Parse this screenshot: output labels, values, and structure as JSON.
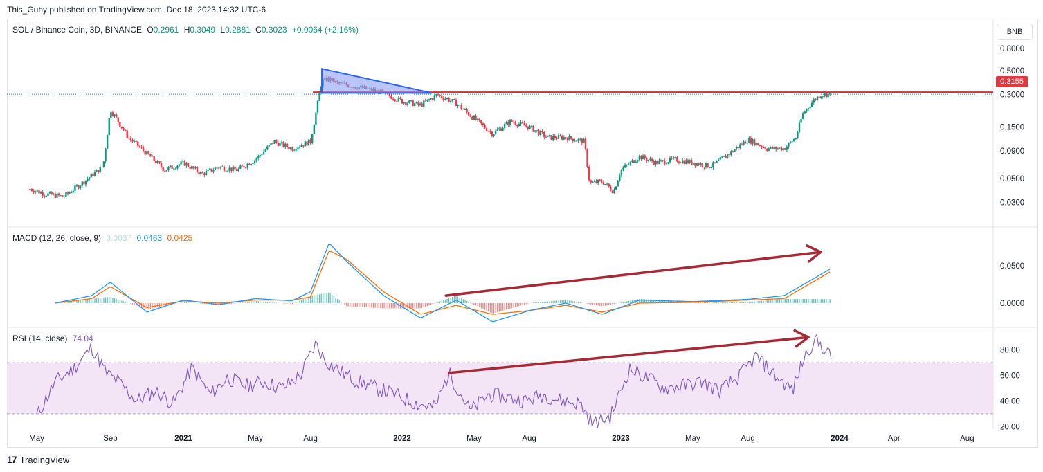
{
  "publisher_line": "This_Guhy published on TradingView.com, Dec 18, 2023 14:32 UTC-6",
  "footer": {
    "brand": "TradingView",
    "logo_icon": "tradingview-logo-icon"
  },
  "currency_button": "BNB",
  "last_price_badge": "0.3155",
  "colors": {
    "up": "#089981",
    "down": "#f23645",
    "macd": "#2196f3",
    "signal": "#ff6d00",
    "rsi": "#7e57c2",
    "rsi_band": "#f3e5f5",
    "resistance": "#d32f3a",
    "triangle_fill": "#8c9ff5",
    "triangle_stroke": "#2962ff",
    "arrow": "#a52a35"
  },
  "legend": {
    "main": {
      "symbol": "SOL / Binance Coin, 3D, BINANCE",
      "o_label": "O",
      "o": "0.2961",
      "h_label": "H",
      "h": "0.3049",
      "l_label": "L",
      "l": "0.2881",
      "c_label": "C",
      "c": "0.3023",
      "change": "+0.0064 (+2.16%)"
    },
    "macd": {
      "title": "MACD (12, 26, close, 9)",
      "hist": "0.0037",
      "macd": "0.0463",
      "signal": "0.0425"
    },
    "rsi": {
      "title": "RSI (14, close)",
      "value": "74.04"
    }
  },
  "chart_data": [
    {
      "type": "candlestick",
      "scale": "log",
      "yticks": [
        "0.8000",
        "0.5000",
        "0.3000",
        "0.1500",
        "0.0900",
        "0.0500",
        "0.0300"
      ],
      "ytick_values": [
        0.8,
        0.5,
        0.3,
        0.15,
        0.09,
        0.05,
        0.03
      ],
      "ylim": [
        0.02,
        1.0
      ],
      "x": [
        "2020-04-20",
        "2020-05-15",
        "2020-06-15",
        "2020-07-15",
        "2020-08-20",
        "2020-09-01",
        "2020-10-01",
        "2020-11-01",
        "2020-12-01",
        "2021-01-01",
        "2021-02-01",
        "2021-03-01",
        "2021-04-01",
        "2021-05-01",
        "2021-06-01",
        "2021-07-01",
        "2021-08-01",
        "2021-08-20",
        "2021-09-01",
        "2021-09-15",
        "2021-10-01",
        "2021-11-01",
        "2021-12-01",
        "2022-01-01",
        "2022-02-01",
        "2022-03-01",
        "2022-04-01",
        "2022-05-01",
        "2022-06-01",
        "2022-07-01",
        "2022-08-01",
        "2022-09-01",
        "2022-10-01",
        "2022-11-01",
        "2022-11-10",
        "2022-12-01",
        "2022-12-20",
        "2023-01-01",
        "2023-02-01",
        "2023-03-01",
        "2023-04-01",
        "2023-05-01",
        "2023-06-01",
        "2023-07-01",
        "2023-08-01",
        "2023-09-01",
        "2023-10-01",
        "2023-10-20",
        "2023-11-01",
        "2023-11-20",
        "2023-12-01",
        "2023-12-18"
      ],
      "close": [
        0.04,
        0.036,
        0.034,
        0.045,
        0.065,
        0.22,
        0.12,
        0.085,
        0.06,
        0.07,
        0.055,
        0.064,
        0.06,
        0.075,
        0.11,
        0.095,
        0.11,
        0.4,
        0.42,
        0.38,
        0.37,
        0.34,
        0.31,
        0.26,
        0.24,
        0.3,
        0.25,
        0.18,
        0.13,
        0.17,
        0.15,
        0.12,
        0.12,
        0.11,
        0.045,
        0.047,
        0.038,
        0.06,
        0.08,
        0.07,
        0.075,
        0.07,
        0.065,
        0.085,
        0.115,
        0.095,
        0.095,
        0.12,
        0.2,
        0.27,
        0.3,
        0.3023
      ],
      "resistance": 0.3155,
      "pattern": {
        "type": "descending-triangle",
        "points": [
          [
            "2021-08-20",
            0.52
          ],
          [
            "2022-02-20",
            0.31
          ],
          [
            "2021-08-20",
            0.31
          ]
        ]
      }
    },
    {
      "type": "line",
      "title": "MACD (12, 26, close, 9)",
      "yticks": [
        "0.0500",
        "0.0000"
      ],
      "ytick_values": [
        0.05,
        0.0
      ],
      "ylim": [
        -0.025,
        0.095
      ],
      "x": [
        "2020-06-01",
        "2020-08-01",
        "2020-09-01",
        "2020-11-01",
        "2021-01-01",
        "2021-03-01",
        "2021-05-01",
        "2021-07-01",
        "2021-08-01",
        "2021-09-01",
        "2021-10-01",
        "2021-12-01",
        "2022-02-01",
        "2022-04-01",
        "2022-06-01",
        "2022-08-01",
        "2022-10-01",
        "2022-12-01",
        "2023-02-01",
        "2023-05-01",
        "2023-08-01",
        "2023-10-01",
        "2023-12-18"
      ],
      "series": [
        {
          "name": "MACD",
          "values": [
            0.0,
            0.01,
            0.028,
            -0.012,
            0.004,
            -0.002,
            0.006,
            0.003,
            0.015,
            0.08,
            0.055,
            0.01,
            -0.02,
            0.004,
            -0.025,
            -0.01,
            0.0,
            -0.015,
            0.004,
            0.002,
            0.005,
            0.01,
            0.0463
          ]
        },
        {
          "name": "Signal",
          "values": [
            0.0,
            0.006,
            0.022,
            -0.006,
            0.003,
            0.0,
            0.004,
            0.004,
            0.008,
            0.07,
            0.058,
            0.015,
            -0.015,
            -0.003,
            -0.015,
            -0.01,
            -0.003,
            -0.012,
            0.0,
            0.001,
            0.004,
            0.006,
            0.0425
          ]
        }
      ],
      "trend_arrow": [
        [
          "2022-03-15",
          0.01
        ],
        [
          "2023-12-18",
          0.068
        ]
      ]
    },
    {
      "type": "line",
      "title": "RSI (14, close)",
      "yticks": [
        "80.00",
        "60.00",
        "40.00",
        "20.00"
      ],
      "ytick_values": [
        80,
        60,
        40,
        20
      ],
      "ylim": [
        18,
        95
      ],
      "band": [
        30,
        70
      ],
      "x": [
        "2020-05-01",
        "2020-06-01",
        "2020-07-01",
        "2020-08-01",
        "2020-08-25",
        "2020-09-15",
        "2020-10-15",
        "2020-11-15",
        "2020-12-15",
        "2021-01-15",
        "2021-02-15",
        "2021-03-15",
        "2021-04-15",
        "2021-05-15",
        "2021-06-15",
        "2021-07-15",
        "2021-08-10",
        "2021-08-25",
        "2021-09-20",
        "2021-10-20",
        "2021-11-20",
        "2021-12-20",
        "2022-01-25",
        "2022-02-25",
        "2022-03-20",
        "2022-04-25",
        "2022-05-25",
        "2022-06-25",
        "2022-07-25",
        "2022-08-25",
        "2022-09-25",
        "2022-10-25",
        "2022-11-15",
        "2022-12-15",
        "2023-01-15",
        "2023-02-15",
        "2023-03-15",
        "2023-04-15",
        "2023-05-15",
        "2023-06-15",
        "2023-07-15",
        "2023-08-15",
        "2023-09-15",
        "2023-10-15",
        "2023-11-01",
        "2023-11-20",
        "2023-12-05",
        "2023-12-18"
      ],
      "series": [
        {
          "name": "RSI",
          "values": [
            28,
            55,
            65,
            82,
            62,
            55,
            40,
            48,
            38,
            66,
            45,
            58,
            52,
            55,
            50,
            60,
            85,
            72,
            63,
            55,
            50,
            45,
            38,
            35,
            62,
            32,
            45,
            43,
            40,
            45,
            40,
            38,
            22,
            28,
            65,
            58,
            50,
            52,
            55,
            48,
            58,
            75,
            60,
            48,
            72,
            88,
            82,
            74.04
          ]
        }
      ],
      "trend_arrow": [
        [
          "2022-03-20",
          62
        ],
        [
          "2023-11-10",
          90
        ]
      ]
    }
  ],
  "x_axis": {
    "labels": [
      {
        "text": "May",
        "bold": false,
        "date": "2020-05-01"
      },
      {
        "text": "Sep",
        "bold": false,
        "date": "2020-09-01"
      },
      {
        "text": "2021",
        "bold": true,
        "date": "2021-01-01"
      },
      {
        "text": "May",
        "bold": false,
        "date": "2021-05-01"
      },
      {
        "text": "Aug",
        "bold": false,
        "date": "2021-08-01"
      },
      {
        "text": "2022",
        "bold": true,
        "date": "2022-01-01"
      },
      {
        "text": "May",
        "bold": false,
        "date": "2022-05-01"
      },
      {
        "text": "Aug",
        "bold": false,
        "date": "2022-08-01"
      },
      {
        "text": "2023",
        "bold": true,
        "date": "2023-01-01"
      },
      {
        "text": "May",
        "bold": false,
        "date": "2023-05-01"
      },
      {
        "text": "Aug",
        "bold": false,
        "date": "2023-08-01"
      },
      {
        "text": "2024",
        "bold": true,
        "date": "2024-01-01"
      },
      {
        "text": "Apr",
        "bold": false,
        "date": "2024-04-01"
      },
      {
        "text": "Aug",
        "bold": false,
        "date": "2024-08-01"
      }
    ]
  }
}
